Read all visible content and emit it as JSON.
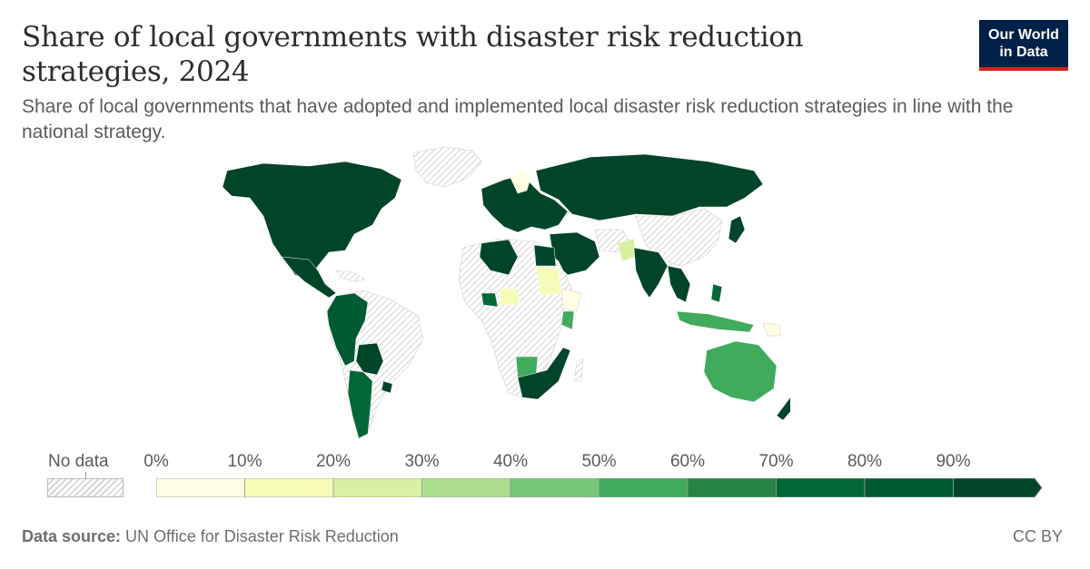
{
  "header": {
    "title": "Share of local governments with disaster risk reduction strategies, 2024",
    "subtitle": "Share of local governments that have adopted and implemented local disaster risk reduction strategies in line with the national strategy."
  },
  "logo": {
    "line1": "Our World",
    "line2": "in Data"
  },
  "legend": {
    "nodata_label": "No data",
    "ticks": [
      "0%",
      "10%",
      "20%",
      "30%",
      "40%",
      "50%",
      "60%",
      "70%",
      "80%",
      "90%"
    ],
    "colors": [
      "#ffffe5",
      "#f7fcb9",
      "#d9f0a3",
      "#addd8e",
      "#78c679",
      "#41ab5d",
      "#238443",
      "#006837",
      "#005a32",
      "#004529"
    ]
  },
  "footer": {
    "source_label": "Data source:",
    "source_text": " UN Office for Disaster Risk Reduction",
    "license": "CC BY"
  }
}
